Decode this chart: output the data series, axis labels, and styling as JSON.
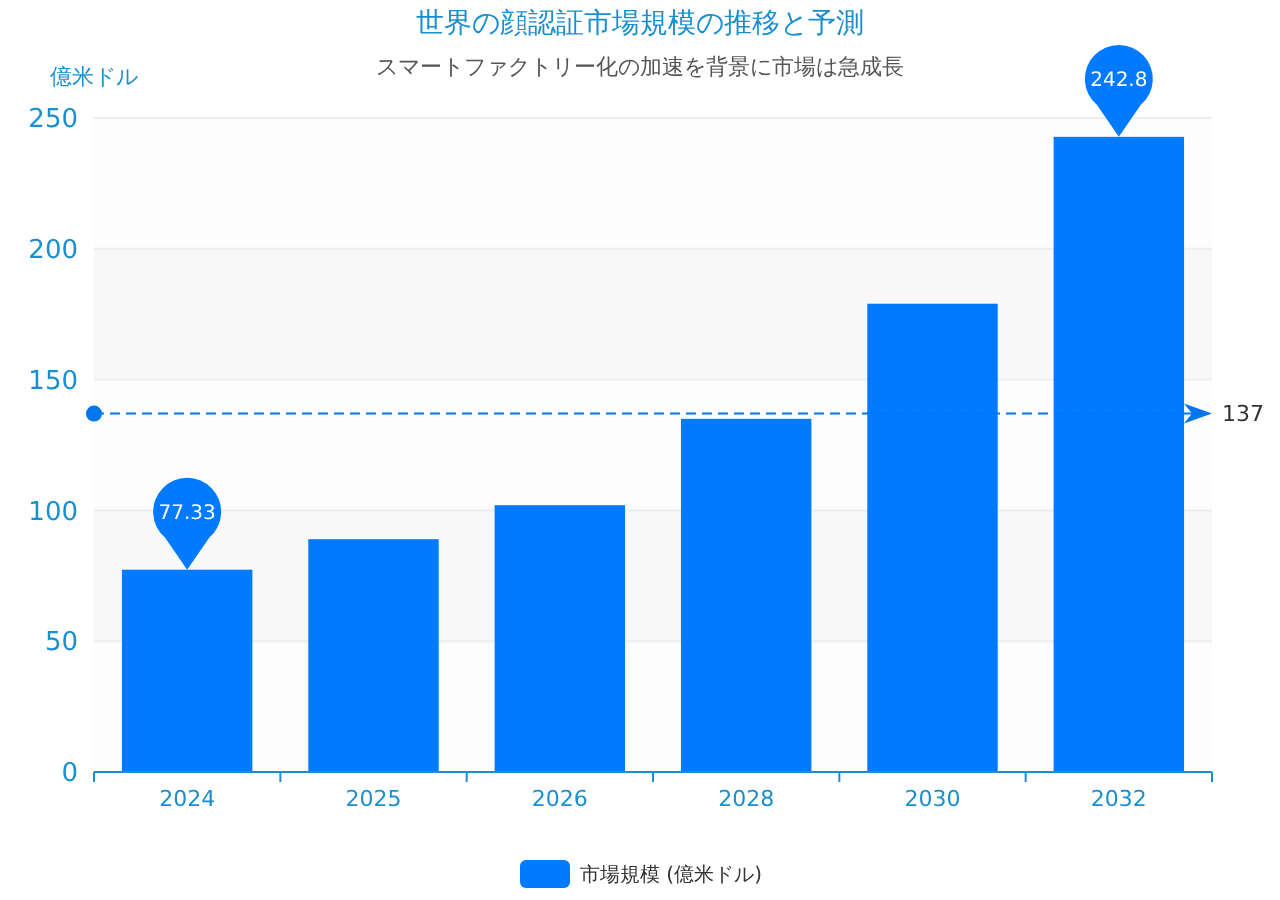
{
  "chart_data": {
    "type": "bar",
    "title": "世界の顔認証市場規模の推移と予測",
    "subtitle": "スマートファクトリー化の加速を背景に市場は急成長",
    "ylabel": "億米ドル",
    "categories": [
      "2024",
      "2025",
      "2026",
      "2028",
      "2030",
      "2032"
    ],
    "series": [
      {
        "name": "市場規模 (億米ドル)",
        "color": "#007bff",
        "values": [
          77.33,
          89,
          102,
          135,
          179,
          242.8
        ]
      }
    ],
    "ylim": [
      0,
      250
    ],
    "yticks": [
      0,
      50,
      100,
      150,
      200,
      250
    ],
    "grid": "y",
    "legend": "bottom",
    "annotations": [
      {
        "text": "77.33",
        "x": "2024",
        "y": 77.33
      },
      {
        "text": "242.8",
        "x": "2032",
        "y": 242.8
      }
    ],
    "ref_lines": [
      {
        "axis": "y",
        "value": 137,
        "label": "137",
        "color": "#0077ee",
        "line_style": "dashed"
      }
    ]
  }
}
